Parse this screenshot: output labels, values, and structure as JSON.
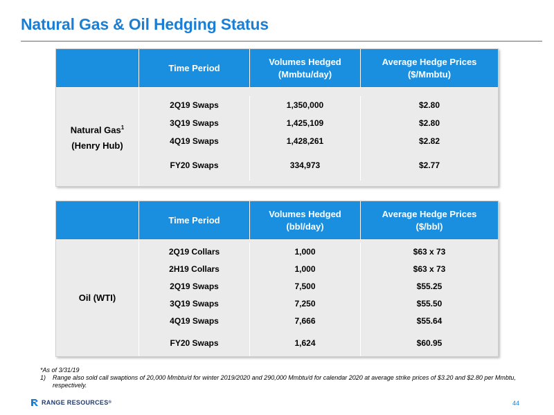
{
  "title": "Natural Gas & Oil Hedging Status",
  "gas_table": {
    "headers": [
      "Time Period",
      "Volumes Hedged\n(Mmbtu/day)",
      "Average Hedge Prices\n($/Mmbtu)"
    ],
    "label_line1": "Natural Gas",
    "label_sup": "1",
    "label_line2": "(Henry Hub)",
    "rows": [
      {
        "period": "2Q19 Swaps",
        "volume": "1,350,000",
        "price": "$2.80"
      },
      {
        "period": "3Q19 Swaps",
        "volume": "1,425,109",
        "price": "$2.80"
      },
      {
        "period": "4Q19 Swaps",
        "volume": "1,428,261",
        "price": "$2.82"
      },
      {
        "period": "FY20 Swaps",
        "volume": "334,973",
        "price": "$2.77"
      }
    ]
  },
  "oil_table": {
    "headers": [
      "Time Period",
      "Volumes Hedged\n(bbl/day)",
      "Average Hedge Prices\n($/bbl)"
    ],
    "label_line1": "Oil (WTI)",
    "rows": [
      {
        "period": "2Q19 Collars",
        "volume": "1,000",
        "price": "$63 x 73"
      },
      {
        "period": "2H19 Collars",
        "volume": "1,000",
        "price": "$63 x 73"
      },
      {
        "period": "2Q19 Swaps",
        "volume": "7,500",
        "price": "$55.25"
      },
      {
        "period": "3Q19 Swaps",
        "volume": "7,250",
        "price": "$55.50"
      },
      {
        "period": "4Q19 Swaps",
        "volume": "7,666",
        "price": "$55.64"
      },
      {
        "period": "FY20 Swaps",
        "volume": "1,624",
        "price": "$60.95"
      }
    ]
  },
  "footnotes": {
    "as_of": "*As of 3/31/19",
    "note1_num": "1)",
    "note1_text": "Range also sold call swaptions of 20,000 Mmbtu/d for winter 2019/2020 and 290,000 Mmbtu/d for calendar 2020 at average strike prices of $3.20 and $2.80 per Mmbtu, respectively."
  },
  "logo_text": "RANGE RESOURCES",
  "logo_mark": "®",
  "page_number": "44",
  "colors": {
    "accent": "#1a7fd4",
    "header_fill": "#1a8fe0",
    "body_fill": "#ebebeb"
  }
}
